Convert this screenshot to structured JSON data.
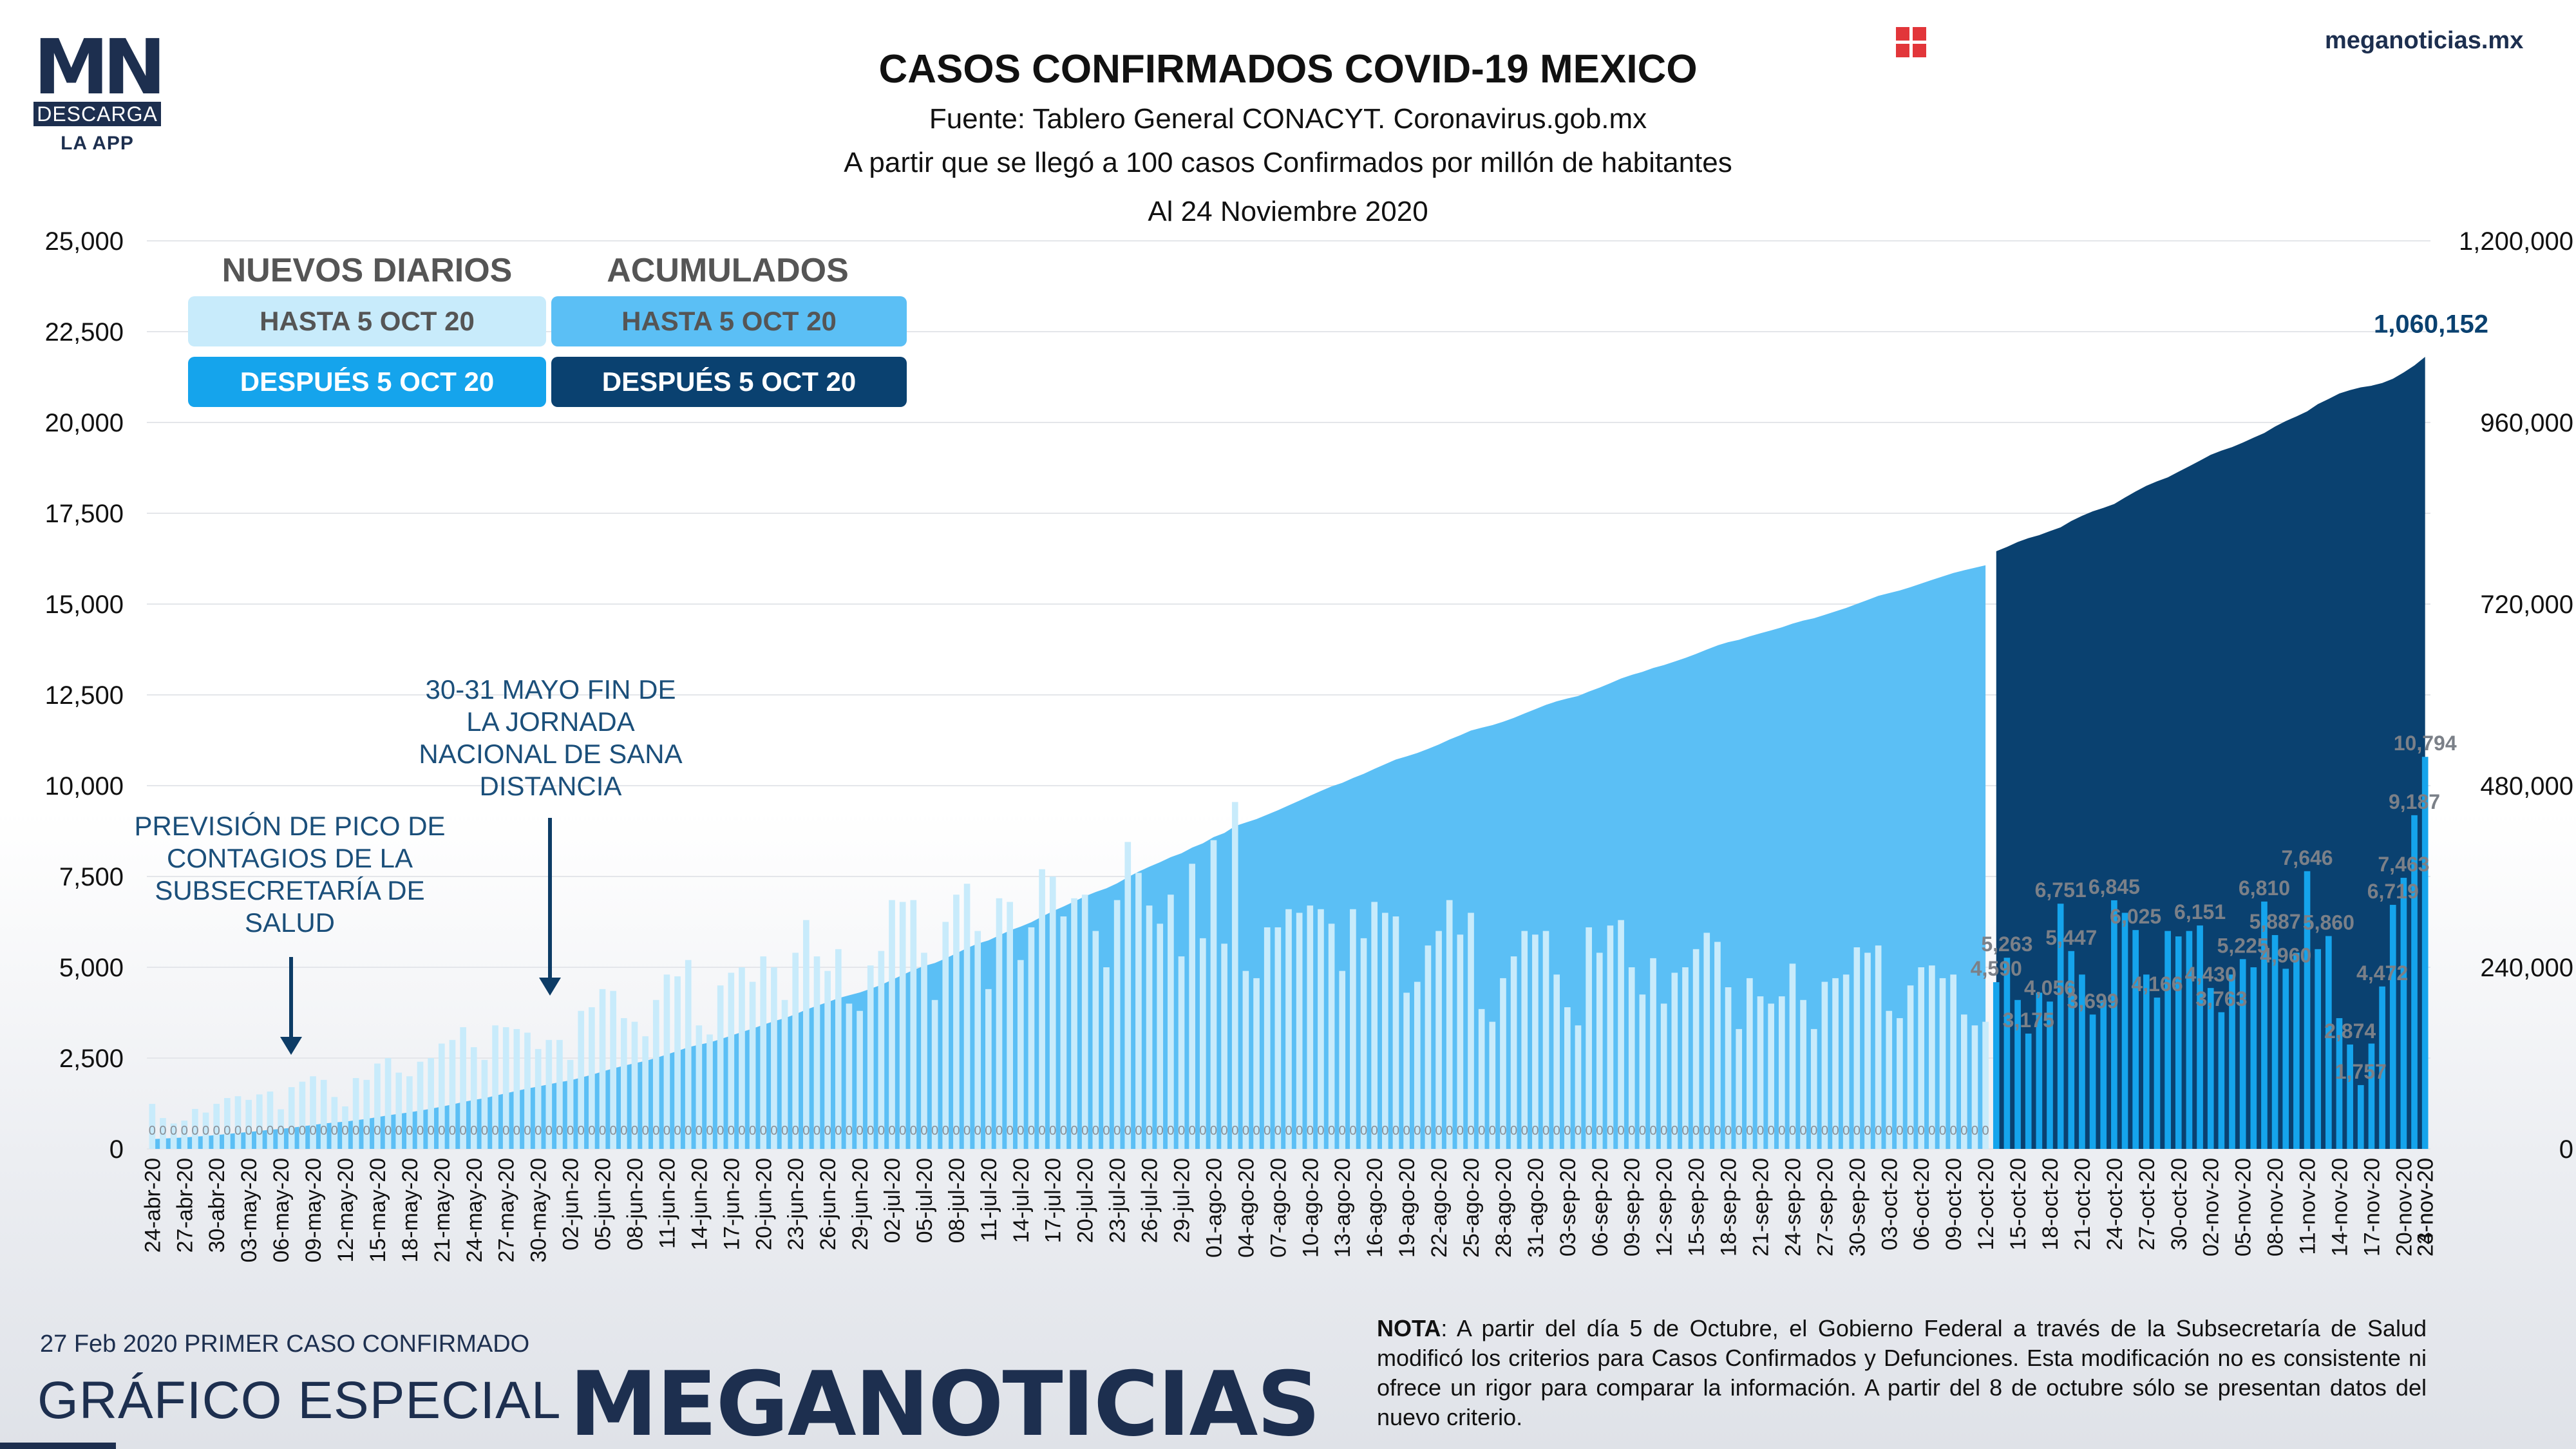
{
  "header": {
    "title": "CASOS CONFIRMADOS COVID-19 MEXICO",
    "source": "Fuente: Tablero General CONACYT. Coronavirus.gob.mx",
    "criteria": "A partir que se llegó a 100 casos Confirmados por millón de habitantes",
    "date": "Al 24 Noviembre 2020",
    "site": "meganoticias.mx"
  },
  "logo": {
    "letters": "MN",
    "descarga": "DESCARGA",
    "la_app": "LA APP"
  },
  "legend": {
    "daily_title": "NUEVOS DIARIOS",
    "cumulative_title": "ACUMULADOS",
    "daily_before": "HASTA 5 OCT 20",
    "daily_after": "DESPUÉS 5 OCT 20",
    "cumulative_before": "HASTA 5 OCT 20",
    "cumulative_after": "DESPUÉS 5 OCT 20"
  },
  "annotations": {
    "peak": "PREVISIÓN DE PICO DE CONTAGIOS DE LA SUBSECRETARÍA DE SALUD",
    "jornada": "30-31 MAYO FIN DE LA JORNADA NACIONAL DE SANA DISTANCIA"
  },
  "footer": {
    "first_case": "27 Feb 2020 PRIMER CASO CONFIRMADO",
    "grafico": "GRÁFICO ESPECIAL",
    "brand": "MEGANOTICIAS",
    "note_label": "NOTA",
    "note_text": ": A partir del día 5 de Octubre, el Gobierno Federal a través de la Subsecretaría de Salud modificó los criterios para Casos Confirmados y Defunciones. Esta modificación no es consistente ni ofrece un rigor para comparar la información. A partir del 8 de octubre sólo se presentan datos del nuevo criterio."
  },
  "colors": {
    "daily_before": "#c8ebfb",
    "daily_after": "#15a4ec",
    "cumulative_before": "#5bbff5",
    "cumulative_after": "#0a4170",
    "navy": "#1d2f4f",
    "accent_red": "#d9262b"
  },
  "chart_data": {
    "type": "bar",
    "start_date": "24-abr-20",
    "end_date": "24-nov-20",
    "change_date": "06-oct-20",
    "left_axis": {
      "ylim": [
        0,
        25000
      ],
      "ticks": [
        "0",
        "2,500",
        "5,000",
        "7,500",
        "10,000",
        "12,500",
        "15,000",
        "17,500",
        "20,000",
        "22,500",
        "25,000"
      ]
    },
    "right_axis": {
      "ylim": [
        0,
        1200000
      ],
      "ticks": [
        "0",
        "240,000",
        "480,000",
        "720,000",
        "960,000",
        "1,200,000"
      ]
    },
    "x_tick_labels": [
      "24-abr-20",
      "27-abr-20",
      "30-abr-20",
      "03-may-20",
      "06-may-20",
      "09-may-20",
      "12-may-20",
      "15-may-20",
      "18-may-20",
      "21-may-20",
      "24-may-20",
      "27-may-20",
      "30-may-20",
      "02-jun-20",
      "05-jun-20",
      "08-jun-20",
      "11-jun-20",
      "14-jun-20",
      "17-jun-20",
      "20-jun-20",
      "23-jun-20",
      "26-jun-20",
      "29-jun-20",
      "02-jul-20",
      "05-jul-20",
      "08-jul-20",
      "11-jul-20",
      "14-jul-20",
      "17-jul-20",
      "20-jul-20",
      "23-jul-20",
      "26-jul-20",
      "29-jul-20",
      "01-ago-20",
      "04-ago-20",
      "07-ago-20",
      "10-ago-20",
      "13-ago-20",
      "16-ago-20",
      "19-ago-20",
      "22-ago-20",
      "25-ago-20",
      "28-ago-20",
      "31-ago-20",
      "03-sep-20",
      "06-sep-20",
      "09-sep-20",
      "12-sep-20",
      "15-sep-20",
      "18-sep-20",
      "21-sep-20",
      "24-sep-20",
      "27-sep-20",
      "30-sep-20",
      "03-oct-20",
      "06-oct-20",
      "09-oct-20",
      "12-oct-20",
      "15-oct-20",
      "18-oct-20",
      "21-oct-20",
      "24-oct-20",
      "27-oct-20",
      "30-oct-20",
      "02-nov-20",
      "05-nov-20",
      "08-nov-20",
      "11-nov-20",
      "14-nov-20",
      "17-nov-20",
      "20-nov-20",
      "23-nov-20",
      "24-nov-20"
    ],
    "daily_before_oct5": [
      1239,
      850,
      700,
      780,
      1100,
      1000,
      1240,
      1400,
      1450,
      1350,
      1500,
      1580,
      1090,
      1700,
      1850,
      2000,
      1900,
      1430,
      1170,
      1950,
      1900,
      2350,
      2500,
      2100,
      2000,
      2400,
      2500,
      2900,
      3000,
      3350,
      2800,
      2450,
      3400,
      3350,
      3300,
      3200,
      2750,
      3000,
      3000,
      2450,
      3800,
      3900,
      4400,
      4350,
      3600,
      3500,
      3100,
      4100,
      4800,
      4750,
      5200,
      3400,
      3150,
      4500,
      4850,
      5000,
      4600,
      5300,
      5000,
      4100,
      5400,
      6300,
      5300,
      4900,
      5500,
      4000,
      3800,
      5050,
      5450,
      6850,
      6800,
      6850,
      5400,
      4100,
      6250,
      7000,
      7300,
      6000,
      4400,
      6900,
      6800,
      5200,
      6100,
      7700,
      7500,
      6400,
      6900,
      7000,
      6000,
      5000,
      6850,
      8450,
      7600,
      6700,
      6200,
      7000,
      5300,
      7850,
      5800,
      8500,
      5650,
      9550,
      4900,
      4700,
      6100,
      6100,
      6600,
      6500,
      6700,
      6600,
      6200,
      4900,
      6600,
      5800,
      6800,
      6500,
      6400,
      4300,
      4600,
      5600,
      6000,
      6850,
      5900,
      6500,
      3850,
      3500,
      4700,
      5300,
      6000,
      5900,
      6000,
      4800,
      3900,
      3400,
      6100,
      5400,
      6150,
      6300,
      5000,
      4250,
      5250,
      4000,
      4850,
      5000,
      5500,
      5950,
      5700,
      4450,
      3300,
      4700,
      4200,
      4000,
      4200,
      5100,
      4100,
      3300,
      4600,
      4700,
      4800,
      5550,
      5400,
      5600,
      3800,
      3600,
      4500,
      5000,
      5050,
      4700,
      4800,
      3700,
      3400,
      3500
    ],
    "daily_after_oct5": [
      4590,
      5263,
      4100,
      3175,
      4300,
      4056,
      6751,
      5447,
      4800,
      3699,
      4100,
      6845,
      6500,
      6025,
      4800,
      4166,
      6000,
      5850,
      6000,
      6151,
      4430,
      3763,
      4800,
      5225,
      5000,
      6810,
      5887,
      4960,
      5400,
      7646,
      5500,
      5860,
      3600,
      2874,
      1757,
      2900,
      4472,
      6719,
      7463,
      9187,
      10794
    ],
    "daily_after_labels": [
      "4,590",
      "5,263",
      "3,175",
      "4,056",
      "6,751",
      "5,447",
      "3,699",
      "6,845",
      "6,025",
      "4,166",
      "6,151",
      "4,430",
      "3,763",
      "5,225",
      "6,810",
      "5,887",
      "4,960",
      "7,646",
      "5,860",
      "2,874",
      "1,757",
      "4,472",
      "6,719",
      "7,463",
      "9,187",
      "10,794"
    ],
    "cumulative_before_oct5": {
      "start": 11633,
      "end": 771318
    },
    "cumulative_after_oct5": {
      "start": 789780,
      "end": 1060152
    },
    "cumulative_end_label": "1,060,152"
  }
}
